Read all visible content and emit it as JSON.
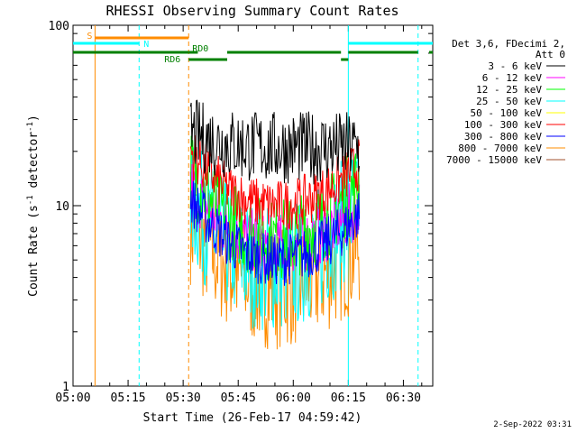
{
  "chart_data": {
    "type": "line",
    "title": "RHESSI Observing Summary Count Rates",
    "xlabel": "Start Time (26-Feb-17 04:59:42)",
    "ylabel": "Count Rate (s",
    "ylabel_sup": "-1",
    "ylabel_mid": " detector",
    "ylabel_close": ")",
    "y_scale": "log",
    "ylim": [
      1,
      100
    ],
    "xlim_minutes": [
      0,
      98
    ],
    "x_ticks": [
      {
        "label": "05:00",
        "min": 0
      },
      {
        "label": "05:15",
        "min": 15
      },
      {
        "label": "05:30",
        "min": 30
      },
      {
        "label": "05:45",
        "min": 45
      },
      {
        "label": "06:00",
        "min": 60
      },
      {
        "label": "06:15",
        "min": 75
      },
      {
        "label": "06:30",
        "min": 90
      }
    ],
    "y_ticks": [
      {
        "label": "100",
        "value": 100
      },
      {
        "label": "10",
        "value": 10
      },
      {
        "label": "1",
        "value": 1
      }
    ],
    "legend_header": [
      "Det 3,6, FDecimi 2,",
      "Att 0"
    ],
    "legend_placement": "right",
    "data_start_min": 32,
    "data_end_min": 78,
    "series": [
      {
        "name": "3 - 6 keV",
        "color": "#000000",
        "start": 25,
        "mid": 21,
        "end": 21,
        "noise": 1.6
      },
      {
        "name": "6 - 12 keV",
        "color": "#ff00ff",
        "start": 13,
        "mid": 6,
        "end": 10,
        "noise": 1.5
      },
      {
        "name": "12 - 25 keV",
        "color": "#00ff00",
        "start": 16,
        "mid": 6.5,
        "end": 14,
        "noise": 1.7
      },
      {
        "name": "25 - 50 keV",
        "color": "#00ffff",
        "start": 11,
        "mid": 4.5,
        "end": 11,
        "noise": 2.3
      },
      {
        "name": "50 - 100 keV",
        "color": "#ffff00",
        "start": 0,
        "mid": 0,
        "end": 0,
        "noise": 0
      },
      {
        "name": "100 - 300 keV",
        "color": "#ff0000",
        "start": 20,
        "mid": 10,
        "end": 17,
        "noise": 1.4
      },
      {
        "name": "300 - 800 keV",
        "color": "#0000ff",
        "start": 11,
        "mid": 5,
        "end": 9,
        "noise": 1.4
      },
      {
        "name": "800 - 7000 keV",
        "color": "#ff8c00",
        "start": 8,
        "mid": 3.5,
        "end": 6,
        "noise": 2.2
      },
      {
        "name": "7000 - 15000 keV",
        "color": "#a0522d",
        "start": 0,
        "mid": 0,
        "end": 0,
        "noise": 0
      }
    ],
    "flags": [
      {
        "label": "S",
        "color": "#ff8c00",
        "segments": [
          [
            6,
            31.5
          ]
        ],
        "level": 1
      },
      {
        "label": "N",
        "color": "#00ffff",
        "segments": [
          [
            0,
            18
          ],
          [
            75,
            98
          ]
        ],
        "level": 2
      },
      {
        "label": "RD0",
        "color": "#008000",
        "segments": [
          [
            31.5,
            34
          ],
          [
            42,
            73
          ],
          [
            75,
            94
          ],
          [
            97,
            98
          ]
        ],
        "level": 3
      },
      {
        "label": "RD6",
        "color": "#008000",
        "segments": [
          [
            0,
            31.5
          ]
        ],
        "level": 3,
        "label_below": true
      },
      {
        "label": "",
        "color": "#008000",
        "segments": [
          [
            31.5,
            42
          ],
          [
            73,
            75
          ]
        ],
        "level": 4
      }
    ],
    "vlines": [
      {
        "min": 6,
        "color": "#ff8c00",
        "dash": false
      },
      {
        "min": 18,
        "color": "#00ffff",
        "dash": true
      },
      {
        "min": 31.5,
        "color": "#ff8c00",
        "dash": true
      },
      {
        "min": 75,
        "color": "#00ffff",
        "dash": false
      },
      {
        "min": 94,
        "color": "#00ffff",
        "dash": true
      }
    ]
  },
  "footer": {
    "date_stamp": "2-Sep-2022 03:31"
  }
}
